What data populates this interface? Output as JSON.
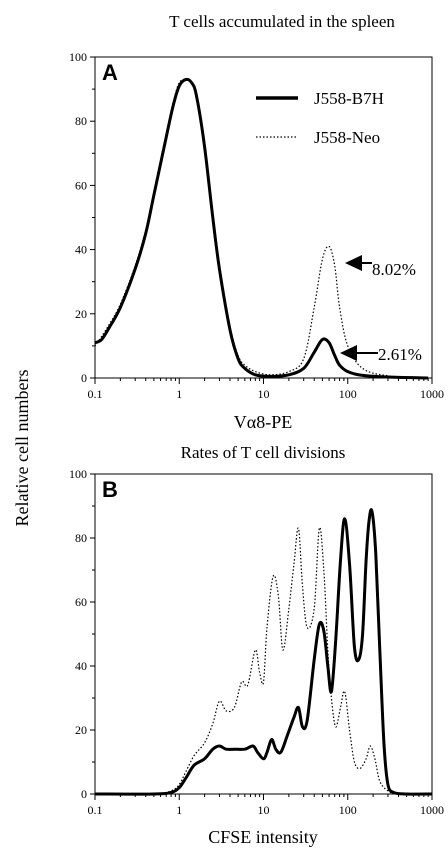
{
  "figure": {
    "ylabel": "Relative cell numbers"
  },
  "chart_data": [
    {
      "type": "line",
      "panel_label": "A",
      "title": "T cells accumulated in the spleen",
      "xlabel": "Vα8-PE",
      "ylabel": "Relative cell numbers",
      "xscale": "log",
      "xlim": [
        0.1,
        1000
      ],
      "ylim": [
        0,
        100
      ],
      "xticks": [
        "0.1",
        "1",
        "10",
        "100",
        "1000"
      ],
      "yticks": [
        "0",
        "20",
        "40",
        "60",
        "80",
        "100"
      ],
      "legend_position": "top-right",
      "series": [
        {
          "name": "J558-B7H",
          "style": "solid-thick",
          "points": [
            [
              0.1,
              11
            ],
            [
              0.12,
              12
            ],
            [
              0.15,
              16
            ],
            [
              0.2,
              22
            ],
            [
              0.3,
              34
            ],
            [
              0.4,
              45
            ],
            [
              0.5,
              57
            ],
            [
              0.7,
              75
            ],
            [
              0.85,
              85
            ],
            [
              1,
              91
            ],
            [
              1.2,
              93
            ],
            [
              1.4,
              92
            ],
            [
              1.6,
              88
            ],
            [
              2,
              72
            ],
            [
              2.5,
              50
            ],
            [
              3,
              34
            ],
            [
              4,
              15
            ],
            [
              5,
              6
            ],
            [
              6,
              3
            ],
            [
              8,
              1
            ],
            [
              12,
              0.5
            ],
            [
              20,
              1
            ],
            [
              30,
              3
            ],
            [
              40,
              8
            ],
            [
              50,
              12
            ],
            [
              60,
              11
            ],
            [
              70,
              7
            ],
            [
              80,
              4
            ],
            [
              100,
              2
            ],
            [
              150,
              0.8
            ],
            [
              300,
              0.3
            ],
            [
              900,
              0
            ]
          ]
        },
        {
          "name": "J558-Neo",
          "style": "dotted",
          "points": [
            [
              0.1,
              10
            ],
            [
              0.12,
              13
            ],
            [
              0.15,
              17
            ],
            [
              0.2,
              23
            ],
            [
              0.3,
              35
            ],
            [
              0.4,
              46
            ],
            [
              0.5,
              58
            ],
            [
              0.7,
              76
            ],
            [
              0.85,
              86
            ],
            [
              1,
              92
            ],
            [
              1.2,
              93
            ],
            [
              1.4,
              92
            ],
            [
              1.6,
              87
            ],
            [
              2,
              71
            ],
            [
              2.5,
              50
            ],
            [
              3,
              34
            ],
            [
              4,
              16
            ],
            [
              5,
              7
            ],
            [
              6,
              4
            ],
            [
              8,
              2
            ],
            [
              12,
              1
            ],
            [
              20,
              2
            ],
            [
              30,
              6
            ],
            [
              40,
              22
            ],
            [
              50,
              37
            ],
            [
              60,
              41
            ],
            [
              70,
              35
            ],
            [
              80,
              22
            ],
            [
              100,
              10
            ],
            [
              150,
              3
            ],
            [
              300,
              0.7
            ],
            [
              900,
              0
            ]
          ]
        }
      ],
      "annotations": [
        {
          "text": "8.02%",
          "x": 60,
          "y": 41
        },
        {
          "text": "2.61%",
          "x": 55,
          "y": 12
        }
      ]
    },
    {
      "type": "line",
      "panel_label": "B",
      "title": "Rates of T cell divisions",
      "xlabel": "CFSE intensity",
      "ylabel": "Relative cell numbers",
      "xscale": "log",
      "xlim": [
        0.1,
        1000
      ],
      "ylim": [
        0,
        100
      ],
      "xticks": [
        "0.1",
        "1",
        "10",
        "100",
        "1000"
      ],
      "yticks": [
        "0",
        "20",
        "40",
        "60",
        "80",
        "100"
      ],
      "series": [
        {
          "name": "J558-B7H",
          "style": "solid-thick",
          "points": [
            [
              0.1,
              0
            ],
            [
              0.5,
              0
            ],
            [
              0.8,
              0.5
            ],
            [
              1,
              2
            ],
            [
              1.2,
              5
            ],
            [
              1.5,
              9
            ],
            [
              2,
              11
            ],
            [
              2.5,
              14
            ],
            [
              3,
              15
            ],
            [
              3.6,
              14
            ],
            [
              4.5,
              14
            ],
            [
              6,
              14
            ],
            [
              7.5,
              15
            ],
            [
              8.5,
              13
            ],
            [
              10,
              11
            ],
            [
              11,
              13
            ],
            [
              12.5,
              17
            ],
            [
              14,
              14
            ],
            [
              16,
              13
            ],
            [
              19,
              18
            ],
            [
              23,
              24
            ],
            [
              26,
              27
            ],
            [
              29,
              21
            ],
            [
              33,
              23
            ],
            [
              40,
              42
            ],
            [
              46,
              53
            ],
            [
              52,
              51
            ],
            [
              58,
              40
            ],
            [
              64,
              32
            ],
            [
              72,
              48
            ],
            [
              82,
              73
            ],
            [
              92,
              86
            ],
            [
              105,
              72
            ],
            [
              120,
              46
            ],
            [
              135,
              42
            ],
            [
              150,
              50
            ],
            [
              165,
              73
            ],
            [
              180,
              86
            ],
            [
              195,
              88
            ],
            [
              215,
              75
            ],
            [
              240,
              45
            ],
            [
              270,
              15
            ],
            [
              300,
              3
            ],
            [
              350,
              0.5
            ],
            [
              500,
              0
            ],
            [
              1000,
              0
            ]
          ]
        },
        {
          "name": "J558-Neo",
          "style": "dotted",
          "points": [
            [
              0.1,
              0
            ],
            [
              0.5,
              0
            ],
            [
              0.8,
              1
            ],
            [
              1,
              3
            ],
            [
              1.2,
              7
            ],
            [
              1.5,
              12
            ],
            [
              2,
              16
            ],
            [
              2.5,
              22
            ],
            [
              3,
              29
            ],
            [
              3.6,
              26
            ],
            [
              4.5,
              27
            ],
            [
              5.5,
              35
            ],
            [
              6.5,
              34
            ],
            [
              8,
              45
            ],
            [
              9,
              38
            ],
            [
              10,
              35
            ],
            [
              11,
              52
            ],
            [
              13,
              68
            ],
            [
              15,
              62
            ],
            [
              17,
              45
            ],
            [
              20,
              58
            ],
            [
              23,
              72
            ],
            [
              26,
              83
            ],
            [
              29,
              65
            ],
            [
              33,
              52
            ],
            [
              40,
              58
            ],
            [
              46,
              83
            ],
            [
              52,
              70
            ],
            [
              58,
              45
            ],
            [
              64,
              30
            ],
            [
              72,
              21
            ],
            [
              82,
              27
            ],
            [
              92,
              32
            ],
            [
              105,
              20
            ],
            [
              120,
              10
            ],
            [
              140,
              8
            ],
            [
              165,
              11
            ],
            [
              185,
              15
            ],
            [
              210,
              11
            ],
            [
              240,
              4
            ],
            [
              300,
              1
            ],
            [
              400,
              0
            ],
            [
              1000,
              0
            ]
          ]
        }
      ]
    }
  ]
}
